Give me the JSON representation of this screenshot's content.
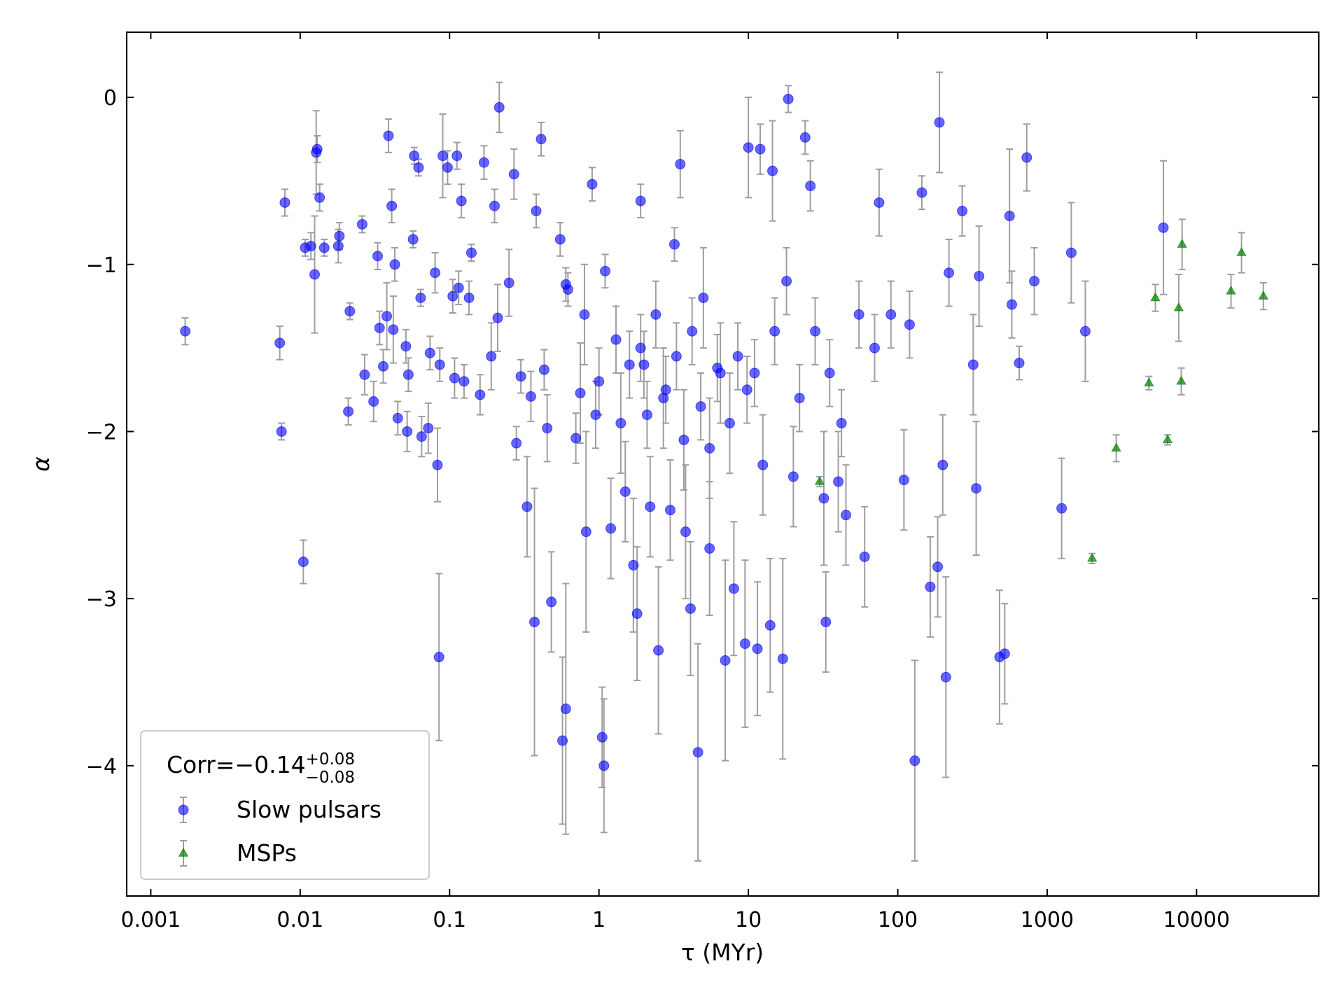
{
  "chart_data": {
    "type": "scatter",
    "x_label": "τ (MYr)",
    "y_label": "α",
    "x_log": true,
    "xlim": [
      0.00069,
      65800
    ],
    "ylim": [
      -4.78,
      0.39
    ],
    "xticks": [
      0.001,
      0.01,
      0.1,
      1,
      10,
      100,
      1000,
      10000
    ],
    "yticks": [
      {
        "value": -4,
        "label": "−4"
      },
      {
        "value": -3,
        "label": "−3"
      },
      {
        "value": -2,
        "label": "−2"
      },
      {
        "value": -1,
        "label": "−1"
      },
      0
    ],
    "errorbar_color": "#9e9e9e",
    "legend": "lower left",
    "legend_title": {
      "text": "Corr=−0.14",
      "upper": "+0.08",
      "lower": "−0.08"
    },
    "series": [
      {
        "name": "Slow pulsars",
        "marker": "circle",
        "color": "#0000ff",
        "x": [
          0.0017,
          0.0073,
          0.0075,
          0.0079,
          0.0105,
          0.0108,
          0.0118,
          0.0125,
          0.0128,
          0.013,
          0.0135,
          0.0145,
          0.018,
          0.0183,
          0.021,
          0.0215,
          0.026,
          0.027,
          0.031,
          0.033,
          0.034,
          0.036,
          0.038,
          0.039,
          0.041,
          0.042,
          0.043,
          0.045,
          0.051,
          0.052,
          0.053,
          0.057,
          0.058,
          0.062,
          0.064,
          0.065,
          0.072,
          0.074,
          0.08,
          0.083,
          0.085,
          0.086,
          0.09,
          0.097,
          0.105,
          0.108,
          0.112,
          0.115,
          0.12,
          0.125,
          0.135,
          0.14,
          0.16,
          0.17,
          0.19,
          0.2,
          0.21,
          0.215,
          0.25,
          0.27,
          0.28,
          0.33,
          0.35,
          0.37,
          0.38,
          0.41,
          0.43,
          0.48,
          0.55,
          0.57,
          0.6,
          0.62,
          0.7,
          0.75,
          0.82,
          0.9,
          0.95,
          1.05,
          1.08,
          1.1,
          1.2,
          1.4,
          1.5,
          1.7,
          1.8,
          1.9,
          2.0,
          2.2,
          2.5,
          2.7,
          3.0,
          3.2,
          3.5,
          3.8,
          4.1,
          4.6,
          5.0,
          5.5,
          6.5,
          7.0,
          8.0,
          9.5,
          10,
          11.5,
          12,
          14,
          14.5,
          17,
          18.5,
          20,
          24,
          26,
          32,
          33,
          40,
          45,
          60,
          75,
          110,
          120,
          130,
          145,
          165,
          185,
          190,
          200,
          210,
          220,
          270,
          320,
          335,
          350,
          480,
          520,
          560,
          580,
          650,
          730,
          820,
          1250,
          1450,
          1800,
          6000,
          0.6,
          0.8,
          1.0,
          1.3,
          1.6,
          1.9,
          2.1,
          2.4,
          2.8,
          3.3,
          3.7,
          4.2,
          4.8,
          5.5,
          6.2,
          7.5,
          8.5,
          9.8,
          11,
          12.5,
          15,
          18,
          22,
          28,
          35,
          42,
          55,
          70,
          90,
          0.45,
          0.3
        ],
        "values": [
          -1.4,
          -1.47,
          -2.0,
          -0.63,
          -2.78,
          -0.9,
          -0.89,
          -1.06,
          -0.33,
          -0.31,
          -0.6,
          -0.9,
          -0.89,
          -0.83,
          -1.88,
          -1.28,
          -0.76,
          -1.66,
          -1.82,
          -0.95,
          -1.38,
          -1.61,
          -1.31,
          -0.23,
          -0.65,
          -1.39,
          -1.0,
          -1.92,
          -1.49,
          -2.0,
          -1.66,
          -0.85,
          -0.35,
          -0.42,
          -1.2,
          -2.03,
          -1.98,
          -1.53,
          -1.05,
          -2.2,
          -3.35,
          -1.6,
          -0.35,
          -0.42,
          -1.19,
          -1.68,
          -0.35,
          -1.14,
          -0.62,
          -1.7,
          -1.2,
          -0.93,
          -1.78,
          -0.39,
          -1.55,
          -0.65,
          -1.32,
          -0.06,
          -1.11,
          -0.46,
          -2.07,
          -2.45,
          -1.79,
          -3.14,
          -0.68,
          -0.25,
          -1.63,
          -3.02,
          -0.85,
          -3.85,
          -3.66,
          -1.15,
          -2.04,
          -1.77,
          -2.6,
          -0.52,
          -1.9,
          -3.83,
          -4.0,
          -1.04,
          -2.58,
          -1.95,
          -2.36,
          -2.8,
          -3.09,
          -0.62,
          -1.6,
          -2.45,
          -3.31,
          -1.8,
          -2.47,
          -0.88,
          -0.4,
          -2.6,
          -3.06,
          -3.92,
          -1.2,
          -2.7,
          -1.65,
          -3.37,
          -2.94,
          -3.27,
          -0.3,
          -3.3,
          -0.31,
          -3.16,
          -0.44,
          -3.36,
          -0.01,
          -2.27,
          -0.24,
          -0.53,
          -2.4,
          -3.14,
          -2.3,
          -2.5,
          -2.75,
          -0.63,
          -2.29,
          -1.36,
          -3.97,
          -0.57,
          -2.93,
          -2.81,
          -0.15,
          -2.2,
          -3.47,
          -1.05,
          -0.68,
          -1.6,
          -2.34,
          -1.07,
          -3.35,
          -3.33,
          -0.71,
          -1.24,
          -1.59,
          -0.36,
          -1.1,
          -2.46,
          -0.93,
          -1.4,
          -0.78,
          -1.12,
          -1.3,
          -1.7,
          -1.45,
          -1.6,
          -1.5,
          -1.9,
          -1.3,
          -1.75,
          -1.55,
          -2.05,
          -1.4,
          -1.85,
          -2.1,
          -1.62,
          -1.95,
          -1.55,
          -1.75,
          -1.65,
          -2.2,
          -1.4,
          -1.1,
          -1.8,
          -1.4,
          -1.65,
          -1.95,
          -1.3,
          -1.5,
          -1.3,
          -1.98,
          -1.67
        ],
        "errors": [
          0.08,
          0.1,
          0.05,
          0.08,
          0.13,
          0.05,
          0.08,
          0.35,
          0.25,
          0.08,
          0.08,
          0.05,
          0.1,
          0.08,
          0.08,
          0.05,
          0.05,
          0.12,
          0.12,
          0.08,
          0.1,
          0.1,
          0.2,
          0.1,
          0.1,
          0.2,
          0.1,
          0.1,
          0.1,
          0.12,
          0.1,
          0.05,
          0.05,
          0.05,
          0.05,
          0.12,
          0.15,
          0.1,
          0.12,
          0.22,
          0.5,
          0.1,
          0.25,
          0.1,
          0.1,
          0.12,
          0.08,
          0.1,
          0.1,
          0.1,
          0.1,
          0.05,
          0.12,
          0.1,
          0.2,
          0.1,
          0.2,
          0.15,
          0.2,
          0.15,
          0.1,
          0.3,
          0.15,
          0.8,
          0.1,
          0.1,
          0.12,
          0.3,
          0.1,
          0.5,
          0.75,
          0.1,
          0.15,
          0.3,
          0.6,
          0.1,
          0.2,
          0.3,
          0.4,
          0.1,
          0.3,
          0.3,
          0.3,
          0.4,
          0.4,
          0.1,
          0.2,
          0.3,
          0.5,
          0.3,
          0.3,
          0.1,
          0.2,
          0.4,
          0.4,
          0.65,
          0.3,
          0.4,
          0.3,
          0.6,
          0.4,
          0.5,
          0.3,
          0.4,
          0.15,
          0.4,
          0.3,
          0.6,
          0.08,
          0.3,
          0.1,
          0.15,
          0.4,
          0.3,
          0.3,
          0.3,
          0.3,
          0.2,
          0.3,
          0.2,
          0.6,
          0.1,
          0.3,
          0.3,
          0.3,
          0.3,
          0.6,
          0.2,
          0.15,
          0.3,
          0.4,
          0.3,
          0.4,
          0.3,
          0.4,
          0.2,
          0.1,
          0.2,
          0.2,
          0.3,
          0.3,
          0.3,
          0.4,
          0.1,
          0.3,
          0.2,
          0.2,
          0.2,
          0.2,
          0.2,
          0.2,
          0.2,
          0.2,
          0.3,
          0.2,
          0.2,
          0.3,
          0.2,
          0.3,
          0.2,
          0.2,
          0.2,
          0.3,
          0.2,
          0.2,
          0.2,
          0.2,
          0.2,
          0.2,
          0.2,
          0.2,
          0.2,
          0.2,
          0.1
        ]
      },
      {
        "name": "MSPs",
        "marker": "triangle",
        "color": "#008000",
        "x": [
          30,
          2000,
          2900,
          4800,
          5300,
          6400,
          7600,
          7900,
          8000,
          17000,
          20000,
          28000
        ],
        "values": [
          -2.3,
          -2.76,
          -2.1,
          -1.71,
          -1.2,
          -2.05,
          -1.26,
          -1.7,
          -0.88,
          -1.16,
          -0.93,
          -1.19
        ],
        "errors": [
          0.03,
          0.03,
          0.08,
          0.04,
          0.08,
          0.03,
          0.2,
          0.08,
          0.15,
          0.1,
          0.12,
          0.08
        ]
      }
    ]
  }
}
